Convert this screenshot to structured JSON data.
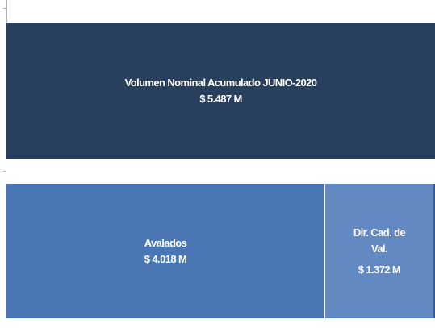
{
  "top": {
    "title": "Volumen Nominal Acumulado JUNIO-2020",
    "value": "$ 5.487 M"
  },
  "blocks": [
    {
      "lines": [
        "Avalados"
      ],
      "value": "$ 4.018 M"
    },
    {
      "lines": [
        "Dir. Cad. de",
        "Val."
      ],
      "value": "$ 1.372 M"
    }
  ]
}
